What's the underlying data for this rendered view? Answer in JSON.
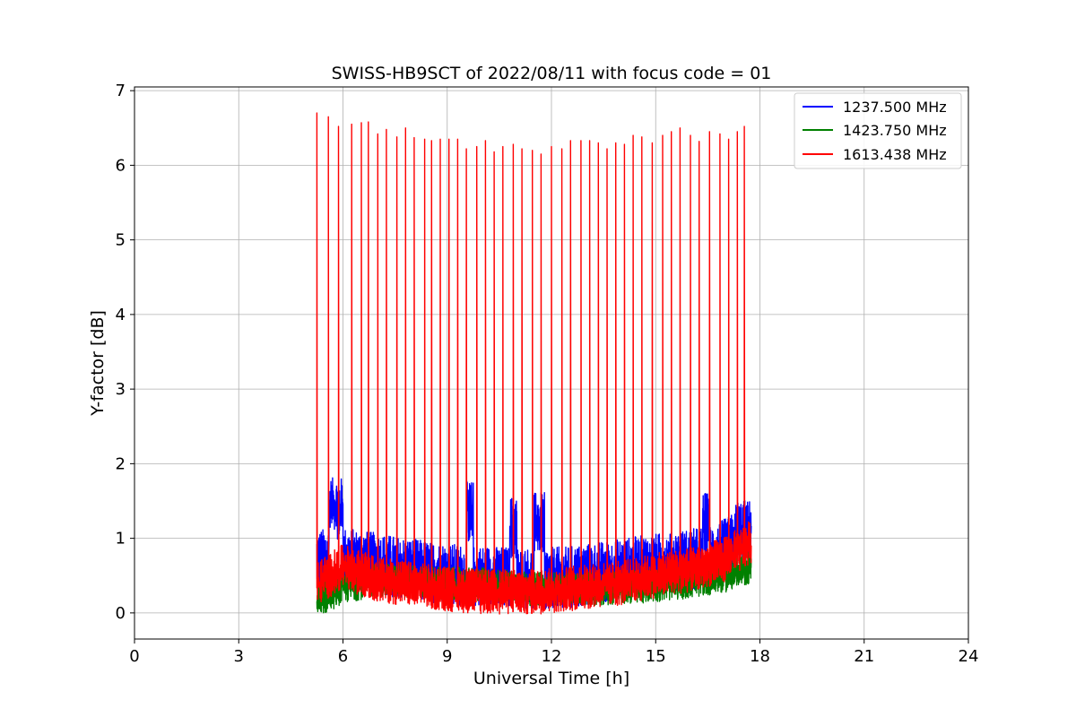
{
  "chart_data": {
    "type": "line",
    "title": "SWISS-HB9SCT of 2022/08/11 with focus code = 01",
    "xlabel": "Universal Time [h]",
    "ylabel": "Y-factor [dB]",
    "xlim": [
      0,
      24
    ],
    "ylim": [
      -0.35,
      7.05
    ],
    "xticks": [
      0,
      3,
      6,
      9,
      12,
      15,
      18,
      21,
      24
    ],
    "yticks": [
      0,
      1,
      2,
      3,
      4,
      5,
      6,
      7
    ],
    "grid": true,
    "legend_position": "top-right",
    "data_range_h": [
      5.25,
      17.75
    ],
    "series": [
      {
        "name": "1237.500 MHz",
        "color": "#0000ff",
        "baseline": [
          [
            5.25,
            0.7
          ],
          [
            5.8,
            0.75
          ],
          [
            6.5,
            0.7
          ],
          [
            7.5,
            0.62
          ],
          [
            8.5,
            0.55
          ],
          [
            9.5,
            0.5
          ],
          [
            10.5,
            0.48
          ],
          [
            11.5,
            0.46
          ],
          [
            12.5,
            0.48
          ],
          [
            13.5,
            0.55
          ],
          [
            14.5,
            0.62
          ],
          [
            15.5,
            0.68
          ],
          [
            16.5,
            0.75
          ],
          [
            17.0,
            0.85
          ],
          [
            17.75,
            1.1
          ]
        ],
        "bursts": [
          {
            "start": 5.6,
            "end": 6.0,
            "level": 1.75
          },
          {
            "start": 9.55,
            "end": 9.75,
            "level": 1.7
          },
          {
            "start": 10.8,
            "end": 11.0,
            "level": 1.5
          },
          {
            "start": 11.5,
            "end": 11.8,
            "level": 1.55
          },
          {
            "start": 16.35,
            "end": 16.55,
            "level": 1.55
          },
          {
            "start": 17.3,
            "end": 17.75,
            "level": 1.45
          }
        ]
      },
      {
        "name": "1423.750 MHz",
        "color": "#008000",
        "baseline": [
          [
            5.25,
            0.15
          ],
          [
            6.0,
            0.35
          ],
          [
            7.0,
            0.45
          ],
          [
            8.5,
            0.4
          ],
          [
            10.0,
            0.38
          ],
          [
            11.5,
            0.32
          ],
          [
            13.0,
            0.32
          ],
          [
            14.5,
            0.35
          ],
          [
            16.0,
            0.42
          ],
          [
            17.0,
            0.5
          ],
          [
            17.75,
            0.62
          ]
        ]
      },
      {
        "name": "1613.438 MHz",
        "color": "#ff0000",
        "baseline": [
          [
            5.25,
            0.4
          ],
          [
            6.0,
            0.62
          ],
          [
            7.0,
            0.45
          ],
          [
            8.0,
            0.38
          ],
          [
            9.0,
            0.32
          ],
          [
            9.5,
            0.3
          ],
          [
            10.0,
            0.28
          ],
          [
            11.5,
            0.28
          ],
          [
            12.0,
            0.3
          ],
          [
            13.0,
            0.35
          ],
          [
            14.0,
            0.4
          ],
          [
            15.0,
            0.5
          ],
          [
            16.0,
            0.58
          ],
          [
            17.0,
            0.72
          ],
          [
            17.75,
            0.95
          ]
        ],
        "spikes": [
          [
            5.25,
            6.7
          ],
          [
            5.58,
            6.65
          ],
          [
            5.87,
            6.52
          ],
          [
            6.25,
            6.55
          ],
          [
            6.53,
            6.57
          ],
          [
            6.73,
            6.58
          ],
          [
            7.0,
            6.42
          ],
          [
            7.25,
            6.48
          ],
          [
            7.55,
            6.38
          ],
          [
            7.8,
            6.5
          ],
          [
            8.05,
            6.37
          ],
          [
            8.35,
            6.35
          ],
          [
            8.55,
            6.33
          ],
          [
            8.8,
            6.35
          ],
          [
            9.05,
            6.35
          ],
          [
            9.3,
            6.35
          ],
          [
            9.55,
            6.22
          ],
          [
            9.85,
            6.25
          ],
          [
            10.1,
            6.33
          ],
          [
            10.35,
            6.18
          ],
          [
            10.6,
            6.25
          ],
          [
            10.9,
            6.28
          ],
          [
            11.15,
            6.22
          ],
          [
            11.45,
            6.2
          ],
          [
            11.7,
            6.15
          ],
          [
            12.0,
            6.25
          ],
          [
            12.3,
            6.22
          ],
          [
            12.55,
            6.33
          ],
          [
            12.85,
            6.33
          ],
          [
            13.1,
            6.33
          ],
          [
            13.35,
            6.3
          ],
          [
            13.6,
            6.22
          ],
          [
            13.85,
            6.3
          ],
          [
            14.1,
            6.28
          ],
          [
            14.35,
            6.4
          ],
          [
            14.6,
            6.38
          ],
          [
            14.9,
            6.3
          ],
          [
            15.2,
            6.4
          ],
          [
            15.45,
            6.45
          ],
          [
            15.7,
            6.5
          ],
          [
            16.0,
            6.4
          ],
          [
            16.25,
            6.32
          ],
          [
            16.55,
            6.45
          ],
          [
            16.85,
            6.42
          ],
          [
            17.1,
            6.35
          ],
          [
            17.35,
            6.45
          ],
          [
            17.55,
            6.52
          ]
        ]
      }
    ]
  }
}
